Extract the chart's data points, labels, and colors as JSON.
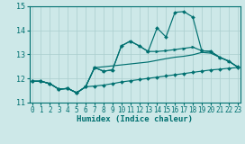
{
  "xlabel": "Humidex (Indice chaleur)",
  "xlim": [
    -0.5,
    23.5
  ],
  "ylim": [
    11,
    15
  ],
  "yticks": [
    11,
    12,
    13,
    14,
    15
  ],
  "xticks": [
    0,
    1,
    2,
    3,
    4,
    5,
    6,
    7,
    8,
    9,
    10,
    11,
    12,
    13,
    14,
    15,
    16,
    17,
    18,
    19,
    20,
    21,
    22,
    23
  ],
  "bg_color": "#cde8e8",
  "grid_color": "#aacece",
  "line_color": "#007070",
  "s1_y": [
    11.88,
    11.88,
    11.78,
    11.55,
    11.58,
    11.4,
    11.65,
    11.68,
    11.72,
    11.78,
    11.85,
    11.9,
    11.95,
    12.0,
    12.05,
    12.1,
    12.15,
    12.2,
    12.25,
    12.3,
    12.35,
    12.38,
    12.42,
    12.45
  ],
  "s2_y": [
    11.88,
    11.88,
    11.78,
    11.55,
    11.58,
    11.4,
    11.65,
    12.45,
    12.48,
    12.52,
    12.56,
    12.6,
    12.64,
    12.68,
    12.75,
    12.82,
    12.88,
    12.92,
    12.98,
    13.08,
    13.05,
    12.88,
    12.72,
    12.48
  ],
  "s3_y": [
    11.88,
    11.88,
    11.78,
    11.55,
    11.58,
    11.4,
    11.65,
    12.45,
    12.3,
    12.35,
    13.35,
    13.55,
    13.35,
    13.12,
    13.12,
    13.15,
    13.2,
    13.25,
    13.3,
    13.15,
    13.12,
    12.88,
    12.72,
    12.48
  ],
  "s4_y": [
    11.88,
    11.88,
    11.78,
    11.55,
    11.58,
    11.4,
    11.65,
    12.45,
    12.3,
    12.35,
    13.35,
    13.55,
    13.35,
    13.12,
    14.1,
    13.72,
    14.75,
    14.78,
    14.55,
    13.15,
    13.12,
    12.88,
    12.72,
    12.48
  ],
  "lw": 0.85,
  "marker_size": 2.0,
  "tick_fontsize": 5.5,
  "xlabel_fontsize": 6.5
}
